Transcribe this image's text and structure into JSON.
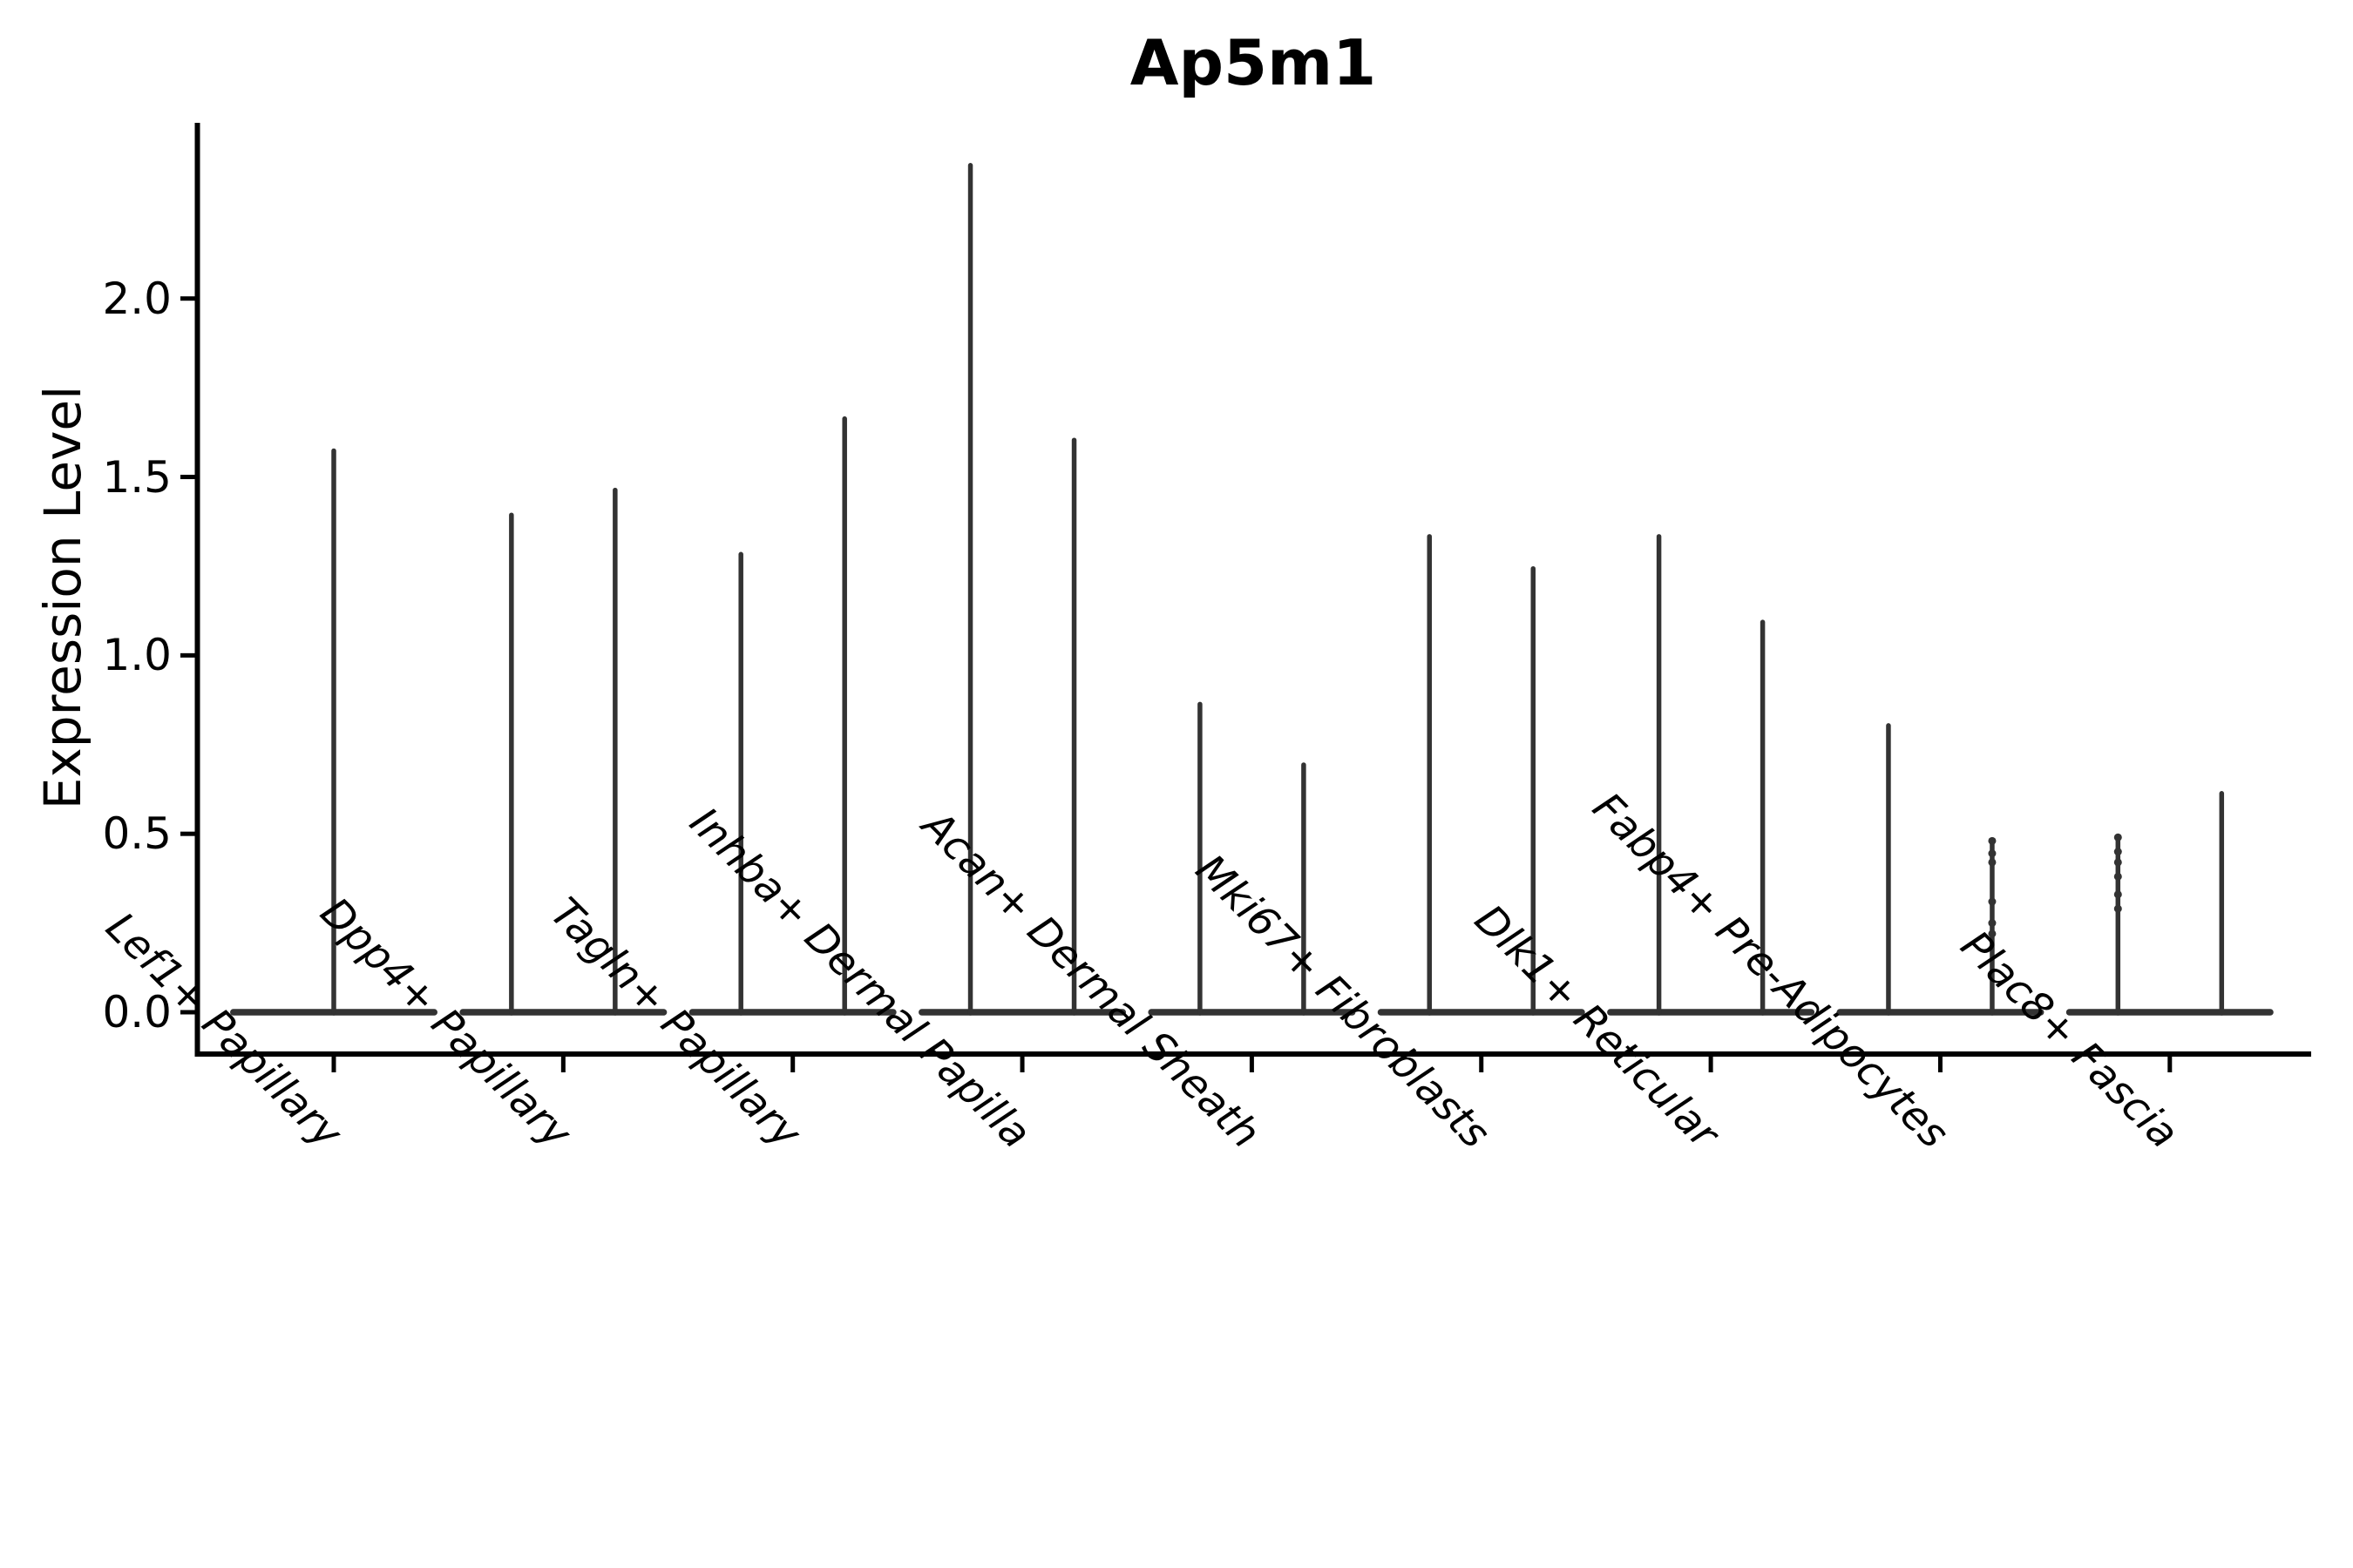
{
  "title": "Ap5m1",
  "ylabel": "Expression Level",
  "chart_data": {
    "type": "violin",
    "title": "Ap5m1",
    "xlabel": "",
    "ylabel": "Expression Level",
    "grid": false,
    "legend": "none",
    "background": "#ffffff",
    "ylim": [
      -0.12,
      2.49
    ],
    "yticks": [
      0.0,
      0.5,
      1.0,
      1.5,
      2.0
    ],
    "ytick_labels": [
      "0.0",
      "0.5",
      "1.0",
      "1.5",
      "2.0"
    ],
    "categories": [
      "Lef1+ Papillary",
      "Dpp4+ Papillary",
      "Tagln+ Papillary",
      "Inhba+ Dermal Papilla",
      "Acan+ Dermal Sheath",
      "Mki67+ Fibroblasts",
      "Dlk1+ Reticular",
      "Fabp4+ Pre-Adipocytes",
      "Plac8+ Fascia"
    ],
    "description": "Each category shows a flat violin body at expression 0 with thin spikes rising to the maximum expression; most categories contain two side-by-side violins.",
    "groups": [
      {
        "category": "Lef1+ Papillary",
        "violins": [
          {
            "pos": "c",
            "max": 1.58,
            "points": []
          }
        ]
      },
      {
        "category": "Dpp4+ Papillary",
        "violins": [
          {
            "pos": "l",
            "max": 1.4,
            "points": []
          },
          {
            "pos": "r",
            "max": 1.47,
            "points": []
          }
        ]
      },
      {
        "category": "Tagln+ Papillary",
        "violins": [
          {
            "pos": "l",
            "max": 1.29,
            "points": []
          },
          {
            "pos": "r",
            "max": 1.67,
            "points": []
          }
        ]
      },
      {
        "category": "Inhba+ Dermal Papilla",
        "violins": [
          {
            "pos": "l",
            "max": 2.38,
            "points": []
          },
          {
            "pos": "r",
            "max": 1.61,
            "points": []
          }
        ]
      },
      {
        "category": "Acan+ Dermal Sheath",
        "violins": [
          {
            "pos": "l",
            "max": 0.87,
            "points": []
          },
          {
            "pos": "r",
            "max": 0.7,
            "points": []
          }
        ]
      },
      {
        "category": "Mki67+ Fibroblasts",
        "violins": [
          {
            "pos": "l",
            "max": 1.34,
            "points": []
          },
          {
            "pos": "r",
            "max": 1.25,
            "points": []
          }
        ]
      },
      {
        "category": "Dlk1+ Reticular",
        "violins": [
          {
            "pos": "l",
            "max": 1.34,
            "points": []
          },
          {
            "pos": "r",
            "max": 1.1,
            "points": []
          }
        ]
      },
      {
        "category": "Fabp4+ Pre-Adipocytes",
        "violins": [
          {
            "pos": "l",
            "max": 0.81,
            "points": []
          },
          {
            "pos": "r",
            "max": 0.48,
            "points": [
              0.48,
              0.445,
              0.42,
              0.31,
              0.25,
              0.22
            ]
          }
        ]
      },
      {
        "category": "Plac8+ Fascia",
        "violins": [
          {
            "pos": "l",
            "max": 0.49,
            "points": [
              0.49,
              0.45,
              0.42,
              0.38,
              0.33,
              0.29
            ]
          },
          {
            "pos": "r",
            "max": 0.62,
            "points": []
          }
        ]
      }
    ],
    "colors": {
      "violin": "#333333",
      "axis": "#000000",
      "text": "#000000",
      "background": "#ffffff"
    }
  }
}
